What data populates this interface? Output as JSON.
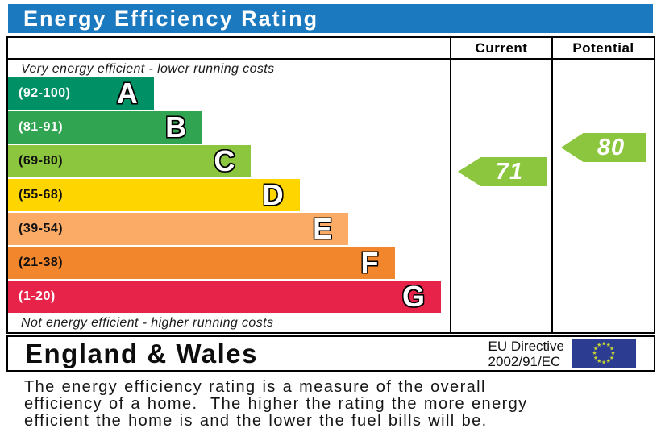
{
  "title": "Energy Efficiency Rating",
  "colors": {
    "title_bar_bg": "#1b79c0",
    "title_text": "#ffffff",
    "border": "#000000"
  },
  "table": {
    "columns": {
      "current": "Current",
      "potential": "Potential"
    },
    "top_note": "Very energy efficient - lower running costs",
    "bottom_note": "Not energy efficient - higher running costs"
  },
  "chart_data": {
    "type": "bar",
    "subtype": "epc-energy-efficiency-rating",
    "title": "Energy Efficiency Rating",
    "bands": [
      {
        "letter": "A",
        "range_label": "(92-100)",
        "min": 92,
        "max": 100,
        "color": "#009065",
        "label_color": "#ffffff",
        "width_pct": 33
      },
      {
        "letter": "B",
        "range_label": "(81-91)",
        "min": 81,
        "max": 91,
        "color": "#31a451",
        "label_color": "#ffffff",
        "width_pct": 44
      },
      {
        "letter": "C",
        "range_label": "(69-80)",
        "min": 69,
        "max": 80,
        "color": "#8cc63f",
        "label_color": "#111111",
        "width_pct": 55
      },
      {
        "letter": "D",
        "range_label": "(55-68)",
        "min": 55,
        "max": 68,
        "color": "#ffd500",
        "label_color": "#111111",
        "width_pct": 66
      },
      {
        "letter": "E",
        "range_label": "(39-54)",
        "min": 39,
        "max": 54,
        "color": "#fbab66",
        "label_color": "#111111",
        "width_pct": 77
      },
      {
        "letter": "F",
        "range_label": "(21-38)",
        "min": 21,
        "max": 38,
        "color": "#f2862c",
        "label_color": "#111111",
        "width_pct": 87.5
      },
      {
        "letter": "G",
        "range_label": "(1-20)",
        "min": 1,
        "max": 20,
        "color": "#e8234a",
        "label_color": "#ffffff",
        "width_pct": 98
      }
    ],
    "current": {
      "value": 71,
      "band": "C",
      "arrow_color": "#8cc63f",
      "text_color": "#ffffff"
    },
    "potential": {
      "value": 80,
      "band": "C",
      "arrow_color": "#8cc63f",
      "text_color": "#ffffff"
    }
  },
  "footer": {
    "region": "England & Wales",
    "directive_line1": "EU Directive",
    "directive_line2": "2002/91/EC",
    "eu_flag": {
      "background": "#2c3c90",
      "star_color": "#c6d531",
      "star_count": 12
    }
  },
  "caption_lines": [
    "The energy efficiency rating is a measure of the overall",
    "efficiency of a home.  The higher the rating the more energy",
    "efficient the home is and the lower the fuel bills will be."
  ]
}
